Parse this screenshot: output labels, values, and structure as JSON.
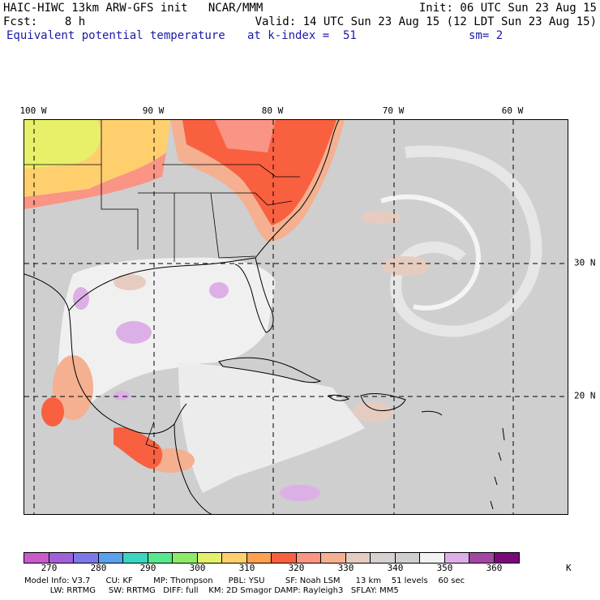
{
  "header": {
    "line1_left": "HAIC-HIWC 13km ARW-GFS init   NCAR/MMM",
    "line1_right": "Init: 06 UTC Sun 23 Aug 15",
    "line2_left": "Fcst:    8 h",
    "line2_right": "Valid: 14 UTC Sun 23 Aug 15 (12 LDT Sun 23 Aug 15)",
    "field_name": "Equivalent potential temperature",
    "level": "at k-index =  51",
    "smoothing": "sm= 2"
  },
  "map": {
    "longitude_labels": [
      "100 W",
      "90 W",
      "80 W",
      "70 W",
      "60 W"
    ],
    "latitude_labels": [
      "30 N",
      "20 N"
    ]
  },
  "colorbar": {
    "unit": "K",
    "tick_labels": [
      "270",
      "280",
      "290",
      "300",
      "310",
      "320",
      "330",
      "340",
      "350",
      "360"
    ],
    "colors": [
      "#c95ac9",
      "#a060d8",
      "#7d78e8",
      "#5aa0ec",
      "#3ad6c0",
      "#56e88c",
      "#8ceb66",
      "#e2f06a",
      "#ffcf6e",
      "#ff9f50",
      "#f86040",
      "#fa9484",
      "#f4b090",
      "#e6ccc0",
      "#d6d0d0",
      "#cfcfcf",
      "#f2f2f2",
      "#dcb0e6",
      "#a346a3",
      "#7a0a7a"
    ]
  },
  "footer": {
    "line1": "Model Info: V3.7      CU: KF        MP: Thompson      PBL: YSU        SF: Noah LSM      13 km    51 levels    60 sec",
    "line2": "          LW: RRTMG     SW: RRTMG   DIFF: full    KM: 2D Smagor DAMP: Rayleigh3   SFLAY: MM5"
  }
}
